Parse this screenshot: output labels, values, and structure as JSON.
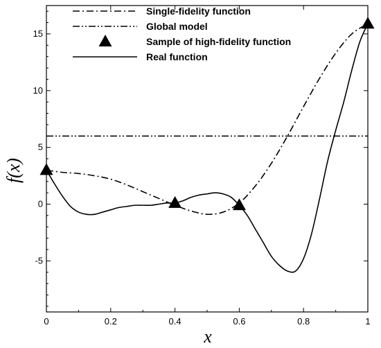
{
  "chart_data": {
    "type": "line",
    "xlabel": "x",
    "ylabel": "f(x)",
    "xlim": [
      0,
      1
    ],
    "ylim": [
      -9.5,
      17.5
    ],
    "x_ticks": [
      0,
      0.2,
      0.4,
      0.6,
      0.8,
      1
    ],
    "x_tick_labels": [
      "0",
      "0.2",
      "0.4",
      "0.6",
      "0.8",
      "1"
    ],
    "y_ticks": [
      -5,
      0,
      5,
      10,
      15
    ],
    "y_tick_labels": [
      "-5",
      "0",
      "5",
      "10",
      "15"
    ],
    "grid": false,
    "legend_position": "top",
    "series": [
      {
        "name": "Single-fidelity function",
        "style": "dash-dot",
        "x": [
          0,
          0.05,
          0.1,
          0.15,
          0.2,
          0.25,
          0.3,
          0.35,
          0.4,
          0.45,
          0.5,
          0.55,
          0.6,
          0.65,
          0.7,
          0.75,
          0.8,
          0.85,
          0.9,
          0.95,
          1
        ],
        "y": [
          3.0,
          2.8,
          2.7,
          2.5,
          2.2,
          1.7,
          1.1,
          0.5,
          -0.1,
          -0.6,
          -0.9,
          -0.7,
          0.1,
          1.6,
          3.6,
          6.0,
          8.6,
          11.1,
          13.3,
          15.0,
          15.9
        ]
      },
      {
        "name": "Global model",
        "style": "dash-dot-dot",
        "x": [
          0,
          1
        ],
        "y": [
          6.0,
          6.0
        ]
      },
      {
        "name": "Sample of high-fidelity function",
        "style": "triangle-marker",
        "x": [
          0,
          0.4,
          0.6,
          1
        ],
        "y": [
          3.0,
          0.1,
          -0.1,
          15.9
        ]
      },
      {
        "name": "Real function",
        "style": "solid",
        "x": [
          0,
          0.025,
          0.05,
          0.075,
          0.1,
          0.125,
          0.15,
          0.175,
          0.2,
          0.225,
          0.25,
          0.275,
          0.3,
          0.325,
          0.35,
          0.375,
          0.4,
          0.425,
          0.45,
          0.475,
          0.5,
          0.525,
          0.55,
          0.575,
          0.6,
          0.625,
          0.65,
          0.675,
          0.7,
          0.725,
          0.75,
          0.775,
          0.8,
          0.825,
          0.85,
          0.875,
          0.9,
          0.925,
          0.95,
          0.975,
          1
        ],
        "y": [
          3.0,
          1.8,
          0.7,
          -0.2,
          -0.7,
          -0.9,
          -0.9,
          -0.7,
          -0.5,
          -0.3,
          -0.2,
          -0.1,
          -0.1,
          -0.1,
          0.0,
          0.1,
          0.1,
          0.3,
          0.6,
          0.8,
          0.9,
          1.0,
          0.9,
          0.6,
          -0.1,
          -1.0,
          -2.2,
          -3.4,
          -4.6,
          -5.4,
          -5.9,
          -5.9,
          -4.8,
          -2.6,
          0.5,
          3.8,
          6.5,
          9.0,
          11.8,
          14.3,
          15.9
        ]
      }
    ]
  }
}
